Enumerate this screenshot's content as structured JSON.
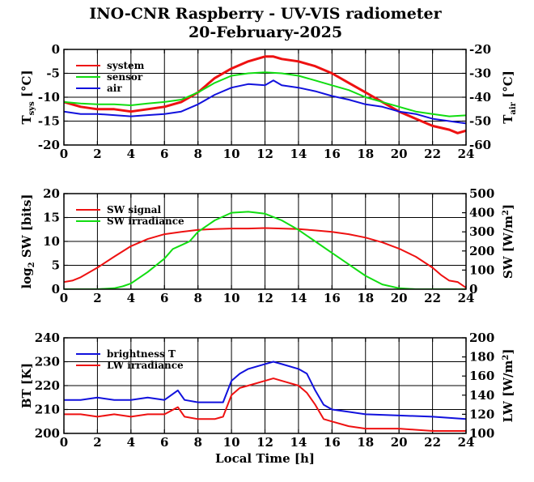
{
  "title": "INO-CNR Raspberry - UV-VIS radiometer",
  "date": "20-February-2025",
  "colors": {
    "red": "#ee1111",
    "green": "#11dd11",
    "blue": "#1111dd"
  },
  "chart_data": [
    {
      "type": "line",
      "x_ticks": [
        "0",
        "2",
        "4",
        "6",
        "8",
        "10",
        "12",
        "14",
        "16",
        "18",
        "20",
        "22",
        "24"
      ],
      "xlim": [
        0,
        24
      ],
      "ylabel": {
        "main": "T",
        "sub": "sys",
        "unit": " [°C]"
      },
      "y2label": {
        "main": "T",
        "sub": "air",
        "unit": " [°C]"
      },
      "ylim": [
        -20,
        0
      ],
      "y_ticks": [
        "0",
        "-5",
        "-10",
        "-15",
        "-20"
      ],
      "y2lim": [
        -60,
        -20
      ],
      "y2_ticks": [
        "-20",
        "-30",
        "-40",
        "-50",
        "-60"
      ],
      "grid": true,
      "legend_placement": "top-left",
      "series": [
        {
          "name": "system",
          "color": "#ee1111",
          "axis": "left",
          "x": [
            0,
            1,
            2,
            3,
            4,
            5,
            6,
            7,
            8,
            9,
            10,
            11,
            11.5,
            12,
            12.5,
            13,
            14,
            15,
            16,
            17,
            18,
            19,
            20,
            21,
            22,
            23,
            23.5,
            24
          ],
          "y": [
            -11,
            -12,
            -12.5,
            -12.5,
            -13,
            -12.5,
            -12,
            -11,
            -9,
            -6,
            -4,
            -2.5,
            -2,
            -1.5,
            -1.5,
            -2,
            -2.5,
            -3.5,
            -5,
            -7,
            -9,
            -11,
            -13,
            -14.5,
            -16,
            -16.8,
            -17.5,
            -17
          ]
        },
        {
          "name": "sensor",
          "color": "#11dd11",
          "axis": "left",
          "x": [
            0,
            1,
            2,
            3,
            4,
            5,
            6,
            7,
            8,
            9,
            10,
            11,
            12,
            13,
            14,
            15,
            16,
            17,
            18,
            19,
            20,
            21,
            22,
            23,
            24
          ],
          "y": [
            -11,
            -11.3,
            -11.5,
            -11.5,
            -11.7,
            -11.3,
            -11,
            -10.5,
            -9,
            -7,
            -5.5,
            -5,
            -4.8,
            -5,
            -5.5,
            -6.5,
            -7.5,
            -8.5,
            -10,
            -11,
            -12,
            -13,
            -13.5,
            -14,
            -13.8
          ]
        },
        {
          "name": "air",
          "color": "#1111dd",
          "axis": "right",
          "x": [
            0,
            1,
            2,
            3,
            4,
            5,
            6,
            7,
            8,
            9,
            10,
            11,
            12,
            12.5,
            13,
            14,
            15,
            16,
            17,
            18,
            19,
            20,
            21,
            22,
            23,
            24
          ],
          "y": [
            -46,
            -47,
            -47,
            -47.5,
            -48,
            -47.5,
            -47,
            -46,
            -43,
            -39,
            -36,
            -34.5,
            -35,
            -33,
            -35,
            -36,
            -37.5,
            -39.5,
            -41,
            -43,
            -44,
            -46,
            -47,
            -49,
            -50,
            -51
          ]
        }
      ]
    },
    {
      "type": "line",
      "x_ticks": [
        "0",
        "2",
        "4",
        "6",
        "8",
        "10",
        "12",
        "14",
        "16",
        "18",
        "20",
        "22",
        "24"
      ],
      "xlim": [
        0,
        24
      ],
      "ylabel": {
        "main": "log",
        "sub": "2",
        "unit": " SW [bits]"
      },
      "y2label": {
        "main": "SW [W/m",
        "sup": "2",
        "unit": "]"
      },
      "ylim": [
        0,
        20
      ],
      "y_ticks": [
        "20",
        "15",
        "10",
        "5",
        "0"
      ],
      "y2lim": [
        0,
        500
      ],
      "y2_ticks": [
        "500",
        "400",
        "300",
        "200",
        "100",
        "0"
      ],
      "grid": true,
      "legend_placement": "top-left",
      "series": [
        {
          "name": "SW signal",
          "color": "#ee1111",
          "axis": "left",
          "x": [
            0,
            0.5,
            1,
            2,
            3,
            4,
            5,
            6,
            7,
            8,
            9,
            10,
            11,
            12,
            13,
            14,
            15,
            16,
            17,
            18,
            19,
            20,
            21,
            22,
            22.5,
            23,
            23.5,
            24
          ],
          "y": [
            1.5,
            1.8,
            2.5,
            4.5,
            6.8,
            9,
            10.5,
            11.5,
            12,
            12.4,
            12.6,
            12.7,
            12.7,
            12.8,
            12.7,
            12.6,
            12.3,
            12,
            11.5,
            10.8,
            9.8,
            8.5,
            6.8,
            4.5,
            3,
            1.8,
            1.5,
            0.3
          ]
        },
        {
          "name": "SW irradiance",
          "color": "#11dd11",
          "axis": "right",
          "x": [
            0,
            2,
            3,
            3.5,
            4,
            5,
            6,
            6.5,
            7,
            7.5,
            8,
            9,
            10,
            11,
            12,
            13,
            14,
            15,
            16,
            17,
            18,
            19,
            20,
            21,
            22,
            24
          ],
          "y": [
            0,
            0,
            5,
            15,
            30,
            90,
            160,
            210,
            230,
            250,
            300,
            360,
            400,
            405,
            395,
            360,
            310,
            250,
            190,
            130,
            70,
            25,
            5,
            0,
            0,
            0
          ]
        }
      ]
    },
    {
      "type": "line",
      "x_ticks": [
        "0",
        "2",
        "4",
        "6",
        "8",
        "10",
        "12",
        "14",
        "16",
        "18",
        "20",
        "22",
        "24"
      ],
      "xlim": [
        0,
        24
      ],
      "xlabel": "Local Time [h]",
      "ylabel": {
        "main": "BT [K]",
        "sub": "",
        "unit": ""
      },
      "y2label": {
        "main": "LW [W/m",
        "sup": "2",
        "unit": "]"
      },
      "ylim": [
        200,
        240
      ],
      "y_ticks": [
        "240",
        "230",
        "220",
        "210",
        "200"
      ],
      "y2lim": [
        100,
        200
      ],
      "y2_ticks": [
        "200",
        "180",
        "160",
        "140",
        "120",
        "100"
      ],
      "grid": true,
      "legend_placement": "top-left",
      "series": [
        {
          "name": "brightness T",
          "color": "#1111dd",
          "axis": "left",
          "x": [
            0,
            1,
            2,
            3,
            4,
            5,
            6,
            6.8,
            7.2,
            8,
            9,
            9.5,
            10,
            10.5,
            11,
            12,
            12.5,
            13,
            14,
            14.5,
            15,
            15.5,
            16,
            17,
            18,
            20,
            22,
            24
          ],
          "y": [
            214,
            214,
            215,
            214,
            214,
            215,
            214,
            218,
            214,
            213,
            213,
            213,
            222,
            225,
            227,
            229,
            230,
            229,
            227,
            225,
            218,
            212,
            210,
            209,
            208,
            207.5,
            207,
            206
          ]
        },
        {
          "name": "LW irradiance",
          "color": "#ee1111",
          "axis": "left",
          "x": [
            0,
            1,
            2,
            3,
            4,
            5,
            6,
            6.8,
            7.2,
            8,
            9,
            9.5,
            10,
            10.5,
            11,
            12,
            12.5,
            13,
            14,
            14.5,
            15,
            15.5,
            16,
            17,
            18,
            20,
            22,
            24
          ],
          "y": [
            208,
            208,
            207,
            208,
            207,
            208,
            208,
            211,
            207,
            206,
            206,
            207,
            216,
            219,
            220,
            222,
            223,
            222,
            220,
            217,
            212,
            206,
            205,
            203,
            202,
            202,
            201,
            201
          ]
        }
      ]
    }
  ]
}
